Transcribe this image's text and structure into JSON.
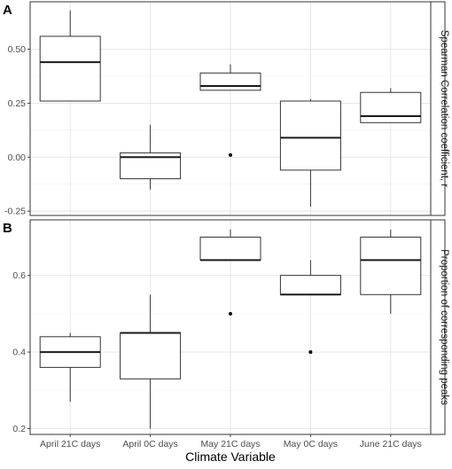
{
  "chart_data": {
    "type": "box",
    "xlabel": "Climate Variable",
    "categories": [
      "April 21C days",
      "April 0C days",
      "May 21C days",
      "May 0C days",
      "June 21C days"
    ],
    "panels": [
      {
        "tag": "A",
        "strip_label": "Spearman Correlation coefficient, r",
        "ylim": [
          -0.27,
          0.72
        ],
        "yticks": [
          -0.25,
          0.0,
          0.25,
          0.5
        ],
        "ytick_labels": [
          "-0.25",
          "0.00",
          "0.25",
          "0.50"
        ],
        "boxes": [
          {
            "whisker_low": 0.26,
            "q1": 0.26,
            "median": 0.44,
            "q3": 0.56,
            "whisker_high": 0.68,
            "outliers": []
          },
          {
            "whisker_low": -0.15,
            "q1": -0.1,
            "median": 0.0,
            "q3": 0.02,
            "whisker_high": 0.15,
            "outliers": []
          },
          {
            "whisker_low": 0.31,
            "q1": 0.31,
            "median": 0.33,
            "q3": 0.39,
            "whisker_high": 0.43,
            "outliers": [
              0.01
            ]
          },
          {
            "whisker_low": -0.23,
            "q1": -0.06,
            "median": 0.09,
            "q3": 0.26,
            "whisker_high": 0.27,
            "outliers": []
          },
          {
            "whisker_low": 0.16,
            "q1": 0.16,
            "median": 0.19,
            "q3": 0.3,
            "whisker_high": 0.32,
            "outliers": []
          }
        ]
      },
      {
        "tag": "B",
        "strip_label": "Proportion of corresponding peaks",
        "ylim": [
          0.185,
          0.745
        ],
        "yticks": [
          0.2,
          0.4,
          0.6
        ],
        "ytick_labels": [
          "0.2",
          "0.4",
          "0.6"
        ],
        "boxes": [
          {
            "whisker_low": 0.27,
            "q1": 0.36,
            "median": 0.4,
            "q3": 0.44,
            "whisker_high": 0.45,
            "outliers": []
          },
          {
            "whisker_low": 0.2,
            "q1": 0.33,
            "median": 0.45,
            "q3": 0.45,
            "whisker_high": 0.55,
            "outliers": []
          },
          {
            "whisker_low": 0.64,
            "q1": 0.64,
            "median": 0.64,
            "q3": 0.7,
            "whisker_high": 0.72,
            "outliers": [
              0.5
            ]
          },
          {
            "whisker_low": 0.55,
            "q1": 0.55,
            "median": 0.55,
            "q3": 0.6,
            "whisker_high": 0.64,
            "outliers": [
              0.4
            ]
          },
          {
            "whisker_low": 0.5,
            "q1": 0.55,
            "median": 0.64,
            "q3": 0.7,
            "whisker_high": 0.72,
            "outliers": []
          }
        ]
      }
    ],
    "grid": true,
    "legend": "none"
  }
}
